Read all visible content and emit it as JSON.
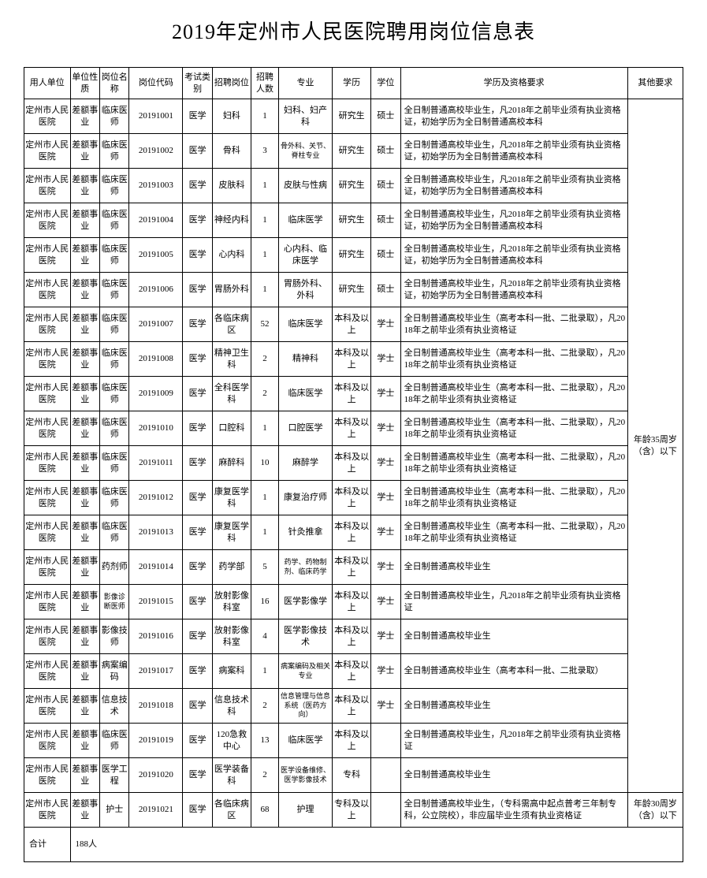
{
  "title": "2019年定州市人民医院聘用岗位信息表",
  "headers": {
    "employer": "用人单位",
    "nature": "单位性质",
    "posname": "岗位名称",
    "code": "岗位代码",
    "examtype": "考试类别",
    "position": "招聘岗位",
    "count": "招聘人数",
    "major": "专业",
    "edu": "学历",
    "degree": "学位",
    "req": "学历及资格要求",
    "other": "其他要求"
  },
  "common": {
    "employer": "定州市人民医院",
    "nature": "差额事业",
    "posname_clinical": "临床医师",
    "examtype": "医学"
  },
  "other_req_main": "年龄35周岁（含）以下",
  "other_req_nurse": "年龄30周岁（含）以下",
  "footer": {
    "label": "合计",
    "value": "188人"
  },
  "rows": [
    {
      "posname": "临床医师",
      "code": "20191001",
      "position": "妇科",
      "count": "1",
      "major": "妇科、妇产科",
      "edu": "研究生",
      "degree": "硕士",
      "req": "全日制普通高校毕业生，凡2018年之前毕业须有执业资格证，初始学历为全日制普通高校本科"
    },
    {
      "posname": "临床医师",
      "code": "20191002",
      "position": "骨科",
      "count": "3",
      "major": "骨外科、关节、脊柱专业",
      "major_small": true,
      "edu": "研究生",
      "degree": "硕士",
      "req": "全日制普通高校毕业生，凡2018年之前毕业须有执业资格证，初始学历为全日制普通高校本科"
    },
    {
      "posname": "临床医师",
      "code": "20191003",
      "position": "皮肤科",
      "count": "1",
      "major": "皮肤与性病",
      "edu": "研究生",
      "degree": "硕士",
      "req": "全日制普通高校毕业生，凡2018年之前毕业须有执业资格证，初始学历为全日制普通高校本科"
    },
    {
      "posname": "临床医师",
      "code": "20191004",
      "position": "神经内科",
      "count": "1",
      "major": "临床医学",
      "edu": "研究生",
      "degree": "硕士",
      "req": "全日制普通高校毕业生，凡2018年之前毕业须有执业资格证，初始学历为全日制普通高校本科"
    },
    {
      "posname": "临床医师",
      "code": "20191005",
      "position": "心内科",
      "count": "1",
      "major": "心内科、临床医学",
      "edu": "研究生",
      "degree": "硕士",
      "req": "全日制普通高校毕业生，凡2018年之前毕业须有执业资格证，初始学历为全日制普通高校本科"
    },
    {
      "posname": "临床医师",
      "code": "20191006",
      "position": "胃肠外科",
      "count": "1",
      "major": "胃肠外科、外科",
      "edu": "研究生",
      "degree": "硕士",
      "req": "全日制普通高校毕业生，凡2018年之前毕业须有执业资格证，初始学历为全日制普通高校本科"
    },
    {
      "posname": "临床医师",
      "code": "20191007",
      "position": "各临床病区",
      "count": "52",
      "major": "临床医学",
      "edu": "本科及以上",
      "degree": "学士",
      "req": "全日制普通高校毕业生（高考本科一批、二批录取），凡2018年之前毕业须有执业资格证"
    },
    {
      "posname": "临床医师",
      "code": "20191008",
      "position": "精神卫生科",
      "count": "2",
      "major": "精神科",
      "edu": "本科及以上",
      "degree": "学士",
      "req": "全日制普通高校毕业生（高考本科一批、二批录取），凡2018年之前毕业须有执业资格证"
    },
    {
      "posname": "临床医师",
      "code": "20191009",
      "position": "全科医学科",
      "count": "2",
      "major": "临床医学",
      "edu": "本科及以上",
      "degree": "学士",
      "req": "全日制普通高校毕业生（高考本科一批、二批录取），凡2018年之前毕业须有执业资格证"
    },
    {
      "posname": "临床医师",
      "code": "20191010",
      "position": "口腔科",
      "count": "1",
      "major": "口腔医学",
      "edu": "本科及以上",
      "degree": "学士",
      "req": "全日制普通高校毕业生（高考本科一批、二批录取），凡2018年之前毕业须有执业资格证"
    },
    {
      "posname": "临床医师",
      "code": "20191011",
      "position": "麻醉科",
      "count": "10",
      "major": "麻醉学",
      "edu": "本科及以上",
      "degree": "学士",
      "req": "全日制普通高校毕业生（高考本科一批、二批录取），凡2018年之前毕业须有执业资格证"
    },
    {
      "posname": "临床医师",
      "code": "20191012",
      "position": "康复医学科",
      "count": "1",
      "major": "康复治疗师",
      "edu": "本科及以上",
      "degree": "学士",
      "req": "全日制普通高校毕业生（高考本科一批、二批录取），凡2018年之前毕业须有执业资格证"
    },
    {
      "posname": "临床医师",
      "code": "20191013",
      "position": "康复医学科",
      "count": "1",
      "major": "针灸推拿",
      "edu": "本科及以上",
      "degree": "学士",
      "req": "全日制普通高校毕业生（高考本科一批、二批录取），凡2018年之前毕业须有执业资格证"
    },
    {
      "posname": "药剂师",
      "code": "20191014",
      "position": "药学部",
      "count": "5",
      "major": "药学、药物制剂、临床药学",
      "major_small": true,
      "edu": "本科及以上",
      "degree": "学士",
      "req": "全日制普通高校毕业生"
    },
    {
      "posname": "影像诊断医师",
      "posname_small": true,
      "code": "20191015",
      "position": "放射影像科室",
      "count": "16",
      "major": "医学影像学",
      "edu": "本科及以上",
      "degree": "学士",
      "req": "全日制普通高校毕业生，凡2018年之前毕业须有执业资格证"
    },
    {
      "posname": "影像技师",
      "code": "20191016",
      "position": "放射影像科室",
      "count": "4",
      "major": "医学影像技术",
      "edu": "本科及以上",
      "degree": "学士",
      "req": "全日制普通高校毕业生"
    },
    {
      "posname": "病案编码",
      "code": "20191017",
      "position": "病案科",
      "count": "1",
      "major": "病案编码及相关专业",
      "major_small": true,
      "edu": "本科及以上",
      "degree": "学士",
      "req": "全日制普通高校毕业生（高考本科一批、二批录取）"
    },
    {
      "posname": "信息技术",
      "code": "20191018",
      "position": "信息技术科",
      "count": "2",
      "major": "信息管理与信息系统（医药方向）",
      "major_small": true,
      "edu": "本科及以上",
      "degree": "学士",
      "req": "全日制普通高校毕业生"
    },
    {
      "posname": "临床医师",
      "code": "20191019",
      "position": "120急救中心",
      "count": "13",
      "major": "临床医学",
      "edu": "本科及以上",
      "degree": "",
      "req": "全日制普通高校毕业生，凡2018年之前毕业须有执业资格证"
    },
    {
      "posname": "医学工程",
      "code": "20191020",
      "position": "医学装备科",
      "count": "2",
      "major": "医学设备维修、医学影像技术",
      "major_small": true,
      "edu": "专科",
      "degree": "",
      "req": "全日制普通高校毕业生"
    },
    {
      "posname": "护士",
      "code": "20191021",
      "position": "各临床病区",
      "count": "68",
      "major": "护理",
      "edu": "专科及以上",
      "degree": "",
      "req": "全日制普通高校毕业生，（专科需高中起点普考三年制专科，公立院校），非应届毕业生须有执业资格证",
      "own_other": true
    }
  ],
  "style": {
    "background_color": "#ffffff",
    "border_color": "#000000",
    "title_fontsize": 26,
    "cell_fontsize": 11,
    "small_fontsize": 9,
    "font_family": "SimSun"
  }
}
